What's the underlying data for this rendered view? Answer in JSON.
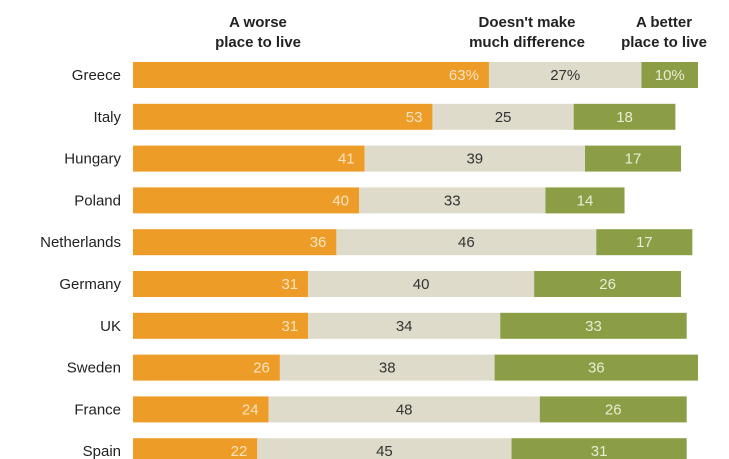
{
  "chart_data": {
    "type": "bar",
    "orientation": "horizontal",
    "stacked": true,
    "title": "",
    "xlabel": "",
    "ylabel": "",
    "categories": [
      "Greece",
      "Italy",
      "Hungary",
      "Poland",
      "Netherlands",
      "Germany",
      "UK",
      "Sweden",
      "France",
      "Spain"
    ],
    "series": [
      {
        "name": "A worse place to live",
        "header_lines": [
          "A worse",
          "place to live"
        ],
        "color": "#ED9C28",
        "label_color": "#FBE3C2",
        "values": [
          63,
          53,
          41,
          40,
          36,
          31,
          31,
          26,
          24,
          22
        ],
        "labels": [
          "63%",
          "53",
          "41",
          "40",
          "36",
          "31",
          "31",
          "26",
          "24",
          "22"
        ]
      },
      {
        "name": "Doesn't make much difference",
        "header_lines": [
          "Doesn't make",
          "much difference"
        ],
        "color": "#DEDBCB",
        "label_color": "#333333",
        "values": [
          27,
          25,
          39,
          33,
          46,
          40,
          34,
          38,
          48,
          45
        ],
        "labels": [
          "27%",
          "25",
          "39",
          "33",
          "46",
          "40",
          "34",
          "38",
          "48",
          "45"
        ]
      },
      {
        "name": "A better place to live",
        "header_lines": [
          "A better",
          "place to live"
        ],
        "color": "#8B9E45",
        "label_color": "#E8EDD5",
        "values": [
          10,
          18,
          17,
          14,
          17,
          26,
          33,
          36,
          26,
          31
        ],
        "labels": [
          "10%",
          "18",
          "17",
          "14",
          "17",
          "26",
          "33",
          "36",
          "26",
          "31"
        ]
      }
    ]
  }
}
